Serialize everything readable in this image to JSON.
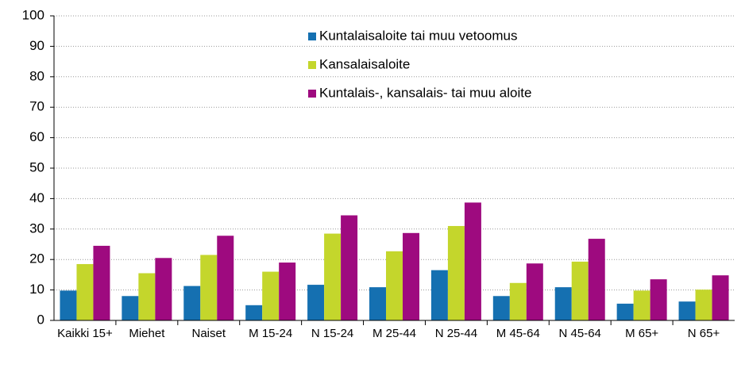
{
  "chart_data": {
    "type": "bar",
    "categories": [
      "Kaikki 15+",
      "Miehet",
      "Naiset",
      "M 15-24",
      "N 15-24",
      "M 25-44",
      "N 25-44",
      "M 45-64",
      "N 45-64",
      "M 65+",
      "N 65+"
    ],
    "series": [
      {
        "name": "Kuntalaisaloite tai muu vetoomus",
        "color": "#1570b1",
        "values": [
          9.8,
          8,
          11.3,
          5,
          11.7,
          10.9,
          16.5,
          8,
          10.9,
          5.5,
          6.2
        ]
      },
      {
        "name": "Kansalaisaloite",
        "color": "#c4d62c",
        "values": [
          18.5,
          15.5,
          21.5,
          16,
          28.5,
          22.7,
          31,
          12.3,
          19.3,
          9.8,
          10.1
        ]
      },
      {
        "name": "Kuntalais-, kansalais- tai muu aloite",
        "color": "#9e0a7f",
        "values": [
          24.5,
          20.5,
          27.8,
          19,
          34.5,
          28.7,
          38.7,
          18.7,
          26.8,
          13.5,
          14.8
        ]
      }
    ],
    "ylim": [
      0,
      100
    ],
    "yticks": [
      0,
      10,
      20,
      30,
      40,
      50,
      60,
      70,
      80,
      90,
      100
    ],
    "grid": true,
    "legend": "top"
  }
}
